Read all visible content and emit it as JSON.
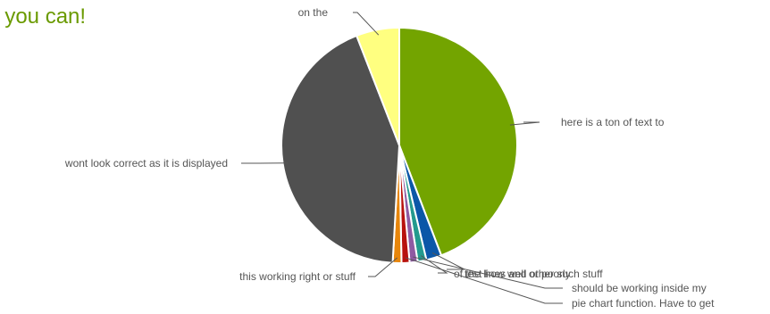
{
  "chart_data": {
    "type": "pie",
    "title": "f you can!",
    "title_color": "#6a9a00",
    "label_color": "#555555",
    "leader_color": "#555555",
    "slices": [
      {
        "label": "here is a ton of text to",
        "value": 44.2,
        "color": "#73a400"
      },
      {
        "label": "test how well or poorly",
        "value": 2.1,
        "color": "#0b57a8"
      },
      {
        "label": "of the lines and other such stuff",
        "value": 1.2,
        "color": "#239a8e"
      },
      {
        "label": "should be working inside my",
        "value": 1.1,
        "color": "#8f5aa2"
      },
      {
        "label": "pie chart function.  Have to get",
        "value": 1.1,
        "color": "#b8120d"
      },
      {
        "label": "this working right or stuff",
        "value": 1.2,
        "color": "#e8860b"
      },
      {
        "label": "wont look correct as it is displayed",
        "value": 43.2,
        "color": "#505050"
      },
      {
        "label": "on the",
        "value": 5.9,
        "color": "#ffff80"
      }
    ]
  }
}
